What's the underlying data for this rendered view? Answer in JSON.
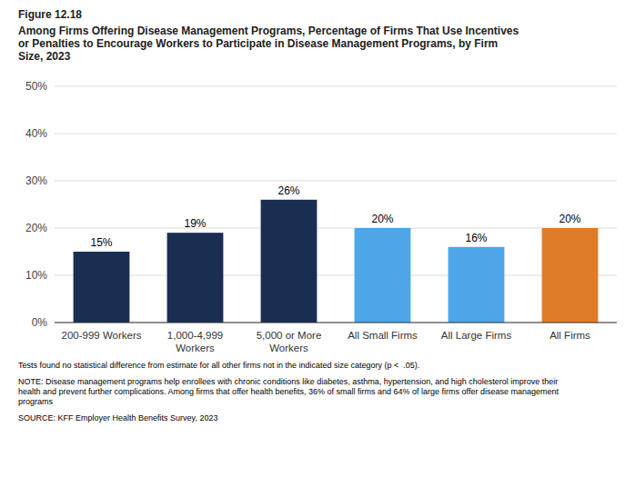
{
  "chart_data": {
    "type": "bar",
    "title": "Figure 12.18",
    "subtitle": "Among Firms Offering Disease Management Programs, Percentage of Firms That Use Incentives\nor Penalties to Encourage Workers to Participate in Disease Management Programs, by Firm\nSize, 2023",
    "categories": [
      "200-999 Workers",
      "1,000-4,999\nWorkers",
      "5,000 or More\nWorkers",
      "All Small Firms",
      "All Large Firms",
      "All Firms"
    ],
    "values": [
      15,
      19,
      26,
      20,
      16,
      20
    ],
    "value_labels": [
      "15%",
      "19%",
      "26%",
      "20%",
      "16%",
      "20%"
    ],
    "colors": [
      "#1a2e52",
      "#1a2e52",
      "#1a2e52",
      "#4da6e8",
      "#4da6e8",
      "#e07b27"
    ],
    "ylim": [
      0,
      50
    ],
    "yticks": [
      {
        "value": 0,
        "label": "0%"
      },
      {
        "value": 10,
        "label": "10%"
      },
      {
        "value": 20,
        "label": "20%"
      },
      {
        "value": 30,
        "label": "30%"
      },
      {
        "value": 40,
        "label": "40%"
      },
      {
        "value": 50,
        "label": "50%"
      }
    ],
    "grid": true,
    "data_labels": true,
    "annotations": [
      "Tests found no statistical difference from estimate for all other firms not in the indicated size category (p <  .05).",
      "NOTE: Disease management programs help enrollees with chronic conditions like diabetes, asthma, hypertension, and high cholesterol improve their\nhealth and prevent further complications. Among firms that offer health benefits, 36% of small firms and 64% of large firms offer disease management\nprograms",
      "SOURCE: KFF Employer Health Benefits Survey, 2023"
    ]
  }
}
